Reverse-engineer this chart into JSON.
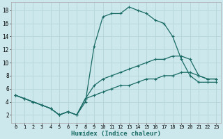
{
  "xlabel": "Humidex (Indice chaleur)",
  "background_color": "#cce8ec",
  "line_color": "#1a6b65",
  "grid_color": "#b8d8dc",
  "xlim": [
    -0.5,
    23.5
  ],
  "ylim": [
    0.8,
    19.2
  ],
  "xticks": [
    0,
    1,
    2,
    3,
    4,
    5,
    6,
    7,
    8,
    9,
    10,
    11,
    12,
    13,
    14,
    15,
    16,
    17,
    18,
    19,
    20,
    21,
    22,
    23
  ],
  "yticks": [
    2,
    4,
    6,
    8,
    10,
    12,
    14,
    16,
    18
  ],
  "line1_x": [
    0,
    1,
    2,
    3,
    4,
    5,
    6,
    7,
    8,
    9,
    10,
    11,
    12,
    13,
    14,
    15,
    16,
    17,
    18,
    19,
    20,
    21,
    22,
    23
  ],
  "line1_y": [
    5.0,
    4.5,
    4.0,
    3.5,
    3.0,
    2.0,
    2.5,
    2.0,
    4.0,
    12.5,
    17.0,
    17.5,
    17.5,
    18.5,
    18.0,
    17.5,
    16.5,
    16.0,
    14.0,
    10.5,
    8.0,
    7.0,
    7.0,
    7.0
  ],
  "line2_x": [
    0,
    1,
    2,
    3,
    4,
    5,
    6,
    7,
    8,
    9,
    10,
    11,
    12,
    13,
    14,
    15,
    16,
    17,
    18,
    19,
    20,
    21,
    22,
    23
  ],
  "line2_y": [
    5.0,
    4.5,
    4.0,
    3.5,
    3.0,
    2.0,
    2.5,
    2.0,
    4.5,
    6.5,
    7.5,
    8.0,
    8.5,
    9.0,
    9.5,
    10.0,
    10.5,
    10.5,
    11.0,
    11.0,
    10.5,
    8.0,
    7.5,
    7.5
  ],
  "line3_x": [
    0,
    1,
    2,
    3,
    4,
    5,
    6,
    7,
    8,
    9,
    10,
    11,
    12,
    13,
    14,
    15,
    16,
    17,
    18,
    19,
    20,
    21,
    22,
    23
  ],
  "line3_y": [
    5.0,
    4.5,
    4.0,
    3.5,
    3.0,
    2.0,
    2.5,
    2.0,
    4.5,
    5.0,
    5.5,
    6.0,
    6.5,
    6.5,
    7.0,
    7.5,
    7.5,
    8.0,
    8.0,
    8.5,
    8.5,
    8.0,
    7.5,
    7.5
  ]
}
